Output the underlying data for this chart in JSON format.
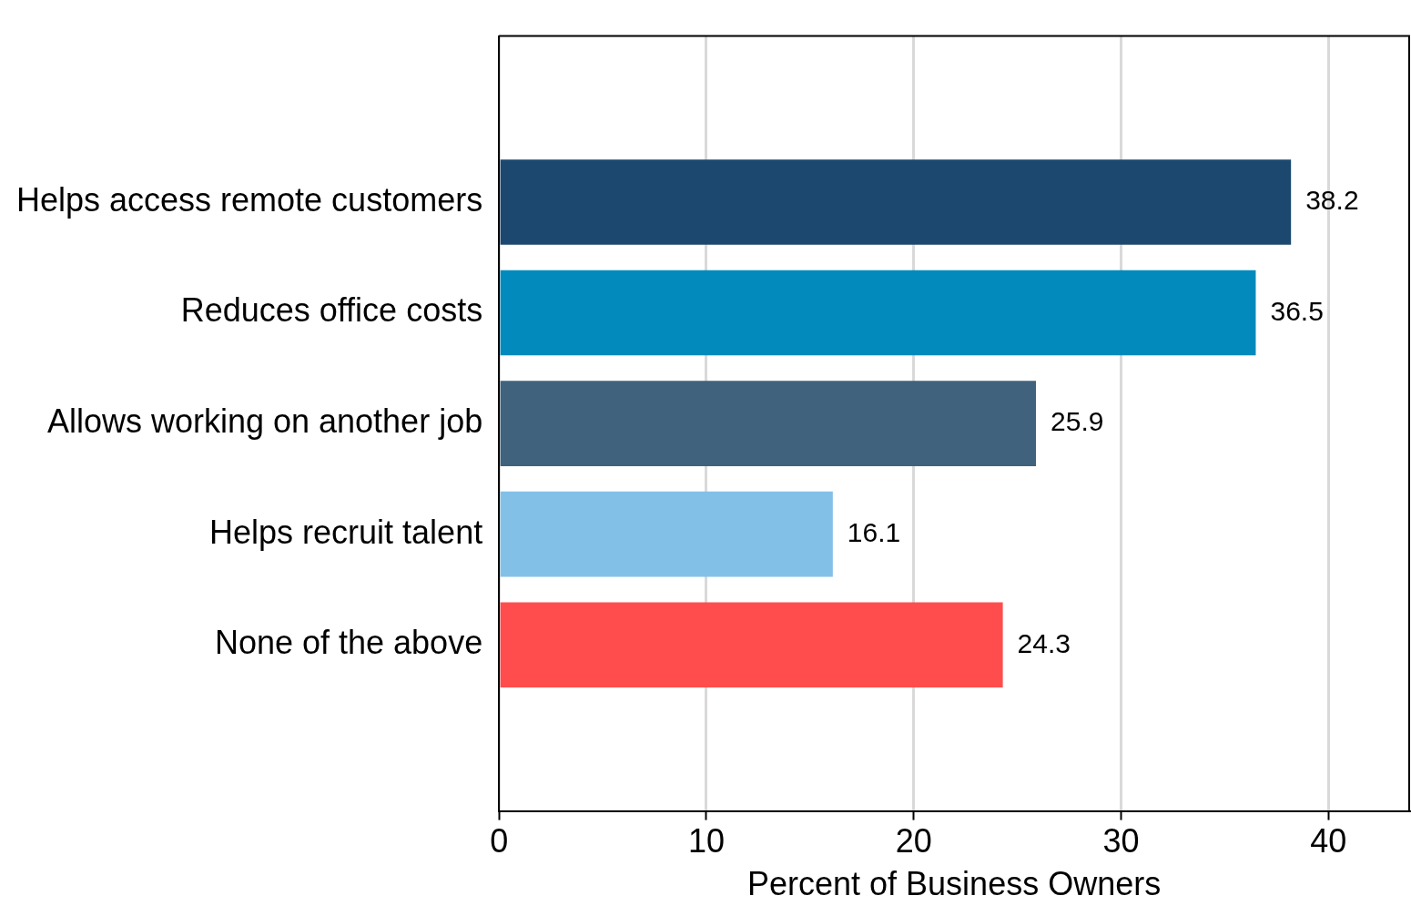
{
  "chart_data": {
    "type": "bar",
    "orientation": "horizontal",
    "xlabel": "Percent of Business Owners",
    "categories": [
      "Helps access remote customers",
      "Reduces office costs",
      "Allows working on another job",
      "Helps recruit talent",
      "None of the above"
    ],
    "values": [
      38.2,
      36.5,
      25.9,
      16.1,
      24.3
    ],
    "colors": [
      "#1c4870",
      "#038abd",
      "#40627c",
      "#83c0e8",
      "#ff4d4d"
    ],
    "xlim": [
      0,
      43.9
    ],
    "xticks": [
      0,
      10,
      20,
      30,
      40
    ],
    "grid": "x",
    "data_labels": true,
    "legend": false
  }
}
